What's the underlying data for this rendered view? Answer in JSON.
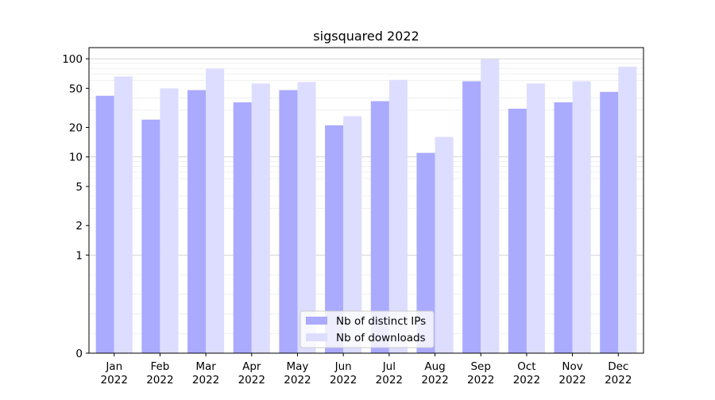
{
  "chart_data": {
    "type": "bar",
    "title": "sigsquared 2022",
    "xlabel": "",
    "ylabel": "",
    "yscale": "symlog",
    "ylim": [
      0,
      130
    ],
    "yticks": [
      0,
      1,
      2,
      5,
      10,
      20,
      50,
      100
    ],
    "ytick_labels": [
      "0",
      "1",
      "2",
      "5",
      "10",
      "20",
      "50",
      "100"
    ],
    "grid": "horizontal (major and minor)",
    "legend_position": "bottom-center",
    "categories": [
      "Jan\n2022",
      "Feb\n2022",
      "Mar\n2022",
      "Apr\n2022",
      "May\n2022",
      "Jun\n2022",
      "Jul\n2022",
      "Aug\n2022",
      "Sep\n2022",
      "Oct\n2022",
      "Nov\n2022",
      "Dec\n2022"
    ],
    "series": [
      {
        "name": "Nb of distinct IPs",
        "color": "#aaaaff",
        "values": [
          42,
          24,
          48,
          36,
          48,
          21,
          37,
          11,
          59,
          31,
          36,
          46
        ]
      },
      {
        "name": "Nb of downloads",
        "color": "#ddddff",
        "values": [
          66,
          50,
          79,
          56,
          58,
          26,
          61,
          16,
          99,
          56,
          59,
          83
        ]
      }
    ]
  }
}
